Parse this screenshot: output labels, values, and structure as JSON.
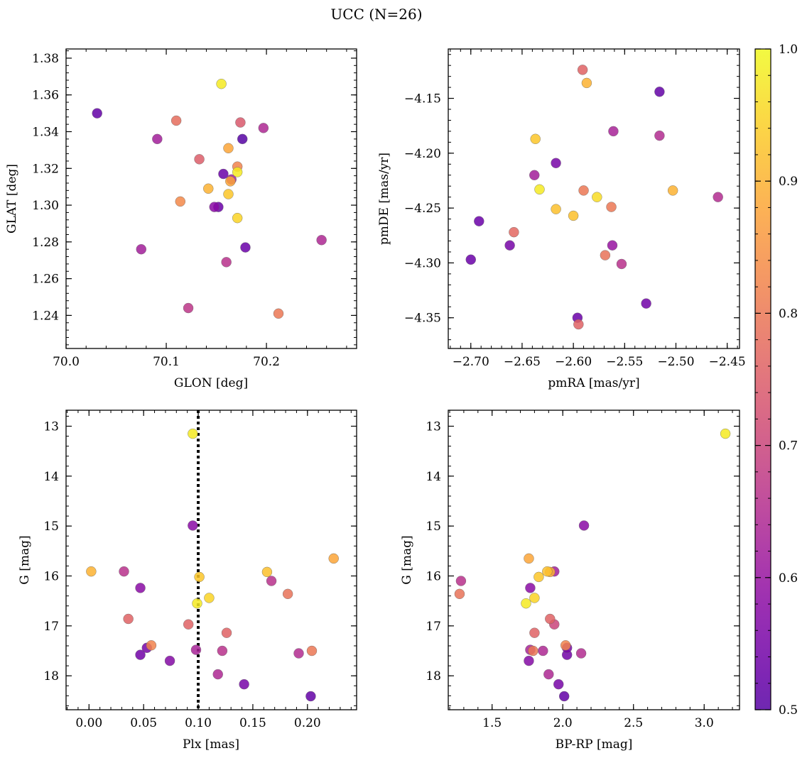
{
  "figure": {
    "title": "UCC (N=26)"
  },
  "colorbar": {
    "range": [
      0.5,
      1.0
    ],
    "ticks": [
      "0.5",
      "0.6",
      "0.7",
      "0.8",
      "0.9",
      "1.0"
    ],
    "tick_values": [
      0.5,
      0.6,
      0.7,
      0.8,
      0.9,
      1.0
    ],
    "colormap": "plasma"
  },
  "chart_data": [
    {
      "type": "scatter",
      "xlabel": "GLON [deg]",
      "ylabel": "GLAT [deg]",
      "xlim": [
        70.0,
        70.29
      ],
      "ylim": [
        1.222,
        1.385
      ],
      "xticks": [
        70.0,
        70.1,
        70.2
      ],
      "xtick_labels": [
        "70.0",
        "70.1",
        "70.2"
      ],
      "yticks": [
        1.24,
        1.26,
        1.28,
        1.3,
        1.32,
        1.34,
        1.36,
        1.38
      ],
      "ytick_labels": [
        "1.24",
        "1.26",
        "1.28",
        "1.30",
        "1.32",
        "1.34",
        "1.36",
        "1.38"
      ],
      "points": [
        {
          "x": 70.031,
          "y": 1.35,
          "c": 0.52
        },
        {
          "x": 70.091,
          "y": 1.336,
          "c": 0.62
        },
        {
          "x": 70.11,
          "y": 1.346,
          "c": 0.78
        },
        {
          "x": 70.133,
          "y": 1.325,
          "c": 0.75
        },
        {
          "x": 70.155,
          "y": 1.366,
          "c": 0.98
        },
        {
          "x": 70.174,
          "y": 1.345,
          "c": 0.74
        },
        {
          "x": 70.176,
          "y": 1.336,
          "c": 0.5
        },
        {
          "x": 70.197,
          "y": 1.342,
          "c": 0.64
        },
        {
          "x": 70.162,
          "y": 1.331,
          "c": 0.88
        },
        {
          "x": 70.171,
          "y": 1.321,
          "c": 0.82
        },
        {
          "x": 70.157,
          "y": 1.317,
          "c": 0.53
        },
        {
          "x": 70.171,
          "y": 1.318,
          "c": 0.98
        },
        {
          "x": 70.165,
          "y": 1.314,
          "c": 0.62
        },
        {
          "x": 70.164,
          "y": 1.313,
          "c": 0.88
        },
        {
          "x": 70.142,
          "y": 1.309,
          "c": 0.9
        },
        {
          "x": 70.162,
          "y": 1.306,
          "c": 0.93
        },
        {
          "x": 70.114,
          "y": 1.302,
          "c": 0.83
        },
        {
          "x": 70.148,
          "y": 1.299,
          "c": 0.58
        },
        {
          "x": 70.152,
          "y": 1.299,
          "c": 0.53
        },
        {
          "x": 70.171,
          "y": 1.293,
          "c": 0.95
        },
        {
          "x": 70.075,
          "y": 1.276,
          "c": 0.62
        },
        {
          "x": 70.179,
          "y": 1.277,
          "c": 0.53
        },
        {
          "x": 70.255,
          "y": 1.281,
          "c": 0.64
        },
        {
          "x": 70.16,
          "y": 1.269,
          "c": 0.66
        },
        {
          "x": 70.122,
          "y": 1.244,
          "c": 0.67
        },
        {
          "x": 70.212,
          "y": 1.241,
          "c": 0.8
        }
      ]
    },
    {
      "type": "scatter",
      "xlabel": "pmRA [mas/yr]",
      "ylabel": "pmDE [mas/yr]",
      "xlim": [
        -2.722,
        -2.438
      ],
      "ylim": [
        -4.378,
        -4.105
      ],
      "xticks": [
        -2.7,
        -2.65,
        -2.6,
        -2.55,
        -2.5,
        -2.45
      ],
      "xtick_labels": [
        "−2.70",
        "−2.65",
        "−2.60",
        "−2.55",
        "−2.50",
        "−2.45"
      ],
      "yticks": [
        -4.35,
        -4.3,
        -4.25,
        -4.2,
        -4.15
      ],
      "ytick_labels": [
        "−4.35",
        "−4.30",
        "−4.25",
        "−4.20",
        "−4.15"
      ],
      "points": [
        {
          "x": -2.591,
          "y": -4.124,
          "c": 0.76
        },
        {
          "x": -2.587,
          "y": -4.136,
          "c": 0.9
        },
        {
          "x": -2.516,
          "y": -4.144,
          "c": 0.52
        },
        {
          "x": -2.561,
          "y": -4.18,
          "c": 0.63
        },
        {
          "x": -2.516,
          "y": -4.184,
          "c": 0.65
        },
        {
          "x": -2.637,
          "y": -4.187,
          "c": 0.93
        },
        {
          "x": -2.617,
          "y": -4.209,
          "c": 0.55
        },
        {
          "x": -2.638,
          "y": -4.22,
          "c": 0.62
        },
        {
          "x": -2.633,
          "y": -4.233,
          "c": 0.98
        },
        {
          "x": -2.59,
          "y": -4.234,
          "c": 0.8
        },
        {
          "x": -2.577,
          "y": -4.24,
          "c": 0.96
        },
        {
          "x": -2.503,
          "y": -4.234,
          "c": 0.9
        },
        {
          "x": -2.459,
          "y": -4.24,
          "c": 0.65
        },
        {
          "x": -2.617,
          "y": -4.251,
          "c": 0.92
        },
        {
          "x": -2.6,
          "y": -4.257,
          "c": 0.92
        },
        {
          "x": -2.563,
          "y": -4.249,
          "c": 0.8
        },
        {
          "x": -2.692,
          "y": -4.262,
          "c": 0.53
        },
        {
          "x": -2.658,
          "y": -4.272,
          "c": 0.77
        },
        {
          "x": -2.662,
          "y": -4.284,
          "c": 0.55
        },
        {
          "x": -2.562,
          "y": -4.284,
          "c": 0.6
        },
        {
          "x": -2.569,
          "y": -4.293,
          "c": 0.79
        },
        {
          "x": -2.553,
          "y": -4.301,
          "c": 0.66
        },
        {
          "x": -2.7,
          "y": -4.297,
          "c": 0.53
        },
        {
          "x": -2.529,
          "y": -4.337,
          "c": 0.54
        },
        {
          "x": -2.596,
          "y": -4.35,
          "c": 0.53
        },
        {
          "x": -2.595,
          "y": -4.356,
          "c": 0.76
        }
      ]
    },
    {
      "type": "scatter",
      "xlabel": "Plx [mas]",
      "ylabel": "G [mag]",
      "xlim": [
        -0.021,
        0.245
      ],
      "ylim": [
        18.68,
        12.68
      ],
      "y_inverted": true,
      "xticks": [
        0.0,
        0.05,
        0.1,
        0.15,
        0.2
      ],
      "xtick_labels": [
        "0.00",
        "0.05",
        "0.10",
        "0.15",
        "0.20"
      ],
      "yticks": [
        13,
        14,
        15,
        16,
        17,
        18
      ],
      "ytick_labels": [
        "13",
        "14",
        "15",
        "16",
        "17",
        "18"
      ],
      "vline": {
        "x": 0.1,
        "style": "dotted"
      },
      "points": [
        {
          "x": 0.095,
          "y": 13.15,
          "c": 0.98
        },
        {
          "x": 0.095,
          "y": 14.99,
          "c": 0.58
        },
        {
          "x": 0.002,
          "y": 15.91,
          "c": 0.9
        },
        {
          "x": 0.032,
          "y": 15.91,
          "c": 0.66
        },
        {
          "x": 0.047,
          "y": 16.24,
          "c": 0.58
        },
        {
          "x": 0.224,
          "y": 15.65,
          "c": 0.88
        },
        {
          "x": 0.163,
          "y": 15.92,
          "c": 0.92
        },
        {
          "x": 0.167,
          "y": 16.1,
          "c": 0.66
        },
        {
          "x": 0.182,
          "y": 16.36,
          "c": 0.79
        },
        {
          "x": 0.101,
          "y": 16.02,
          "c": 0.93
        },
        {
          "x": 0.11,
          "y": 16.44,
          "c": 0.95
        },
        {
          "x": 0.099,
          "y": 16.55,
          "c": 0.98
        },
        {
          "x": 0.036,
          "y": 16.86,
          "c": 0.76
        },
        {
          "x": 0.091,
          "y": 16.97,
          "c": 0.76
        },
        {
          "x": 0.126,
          "y": 17.14,
          "c": 0.76
        },
        {
          "x": 0.057,
          "y": 17.39,
          "c": 0.82
        },
        {
          "x": 0.053,
          "y": 17.44,
          "c": 0.55
        },
        {
          "x": 0.098,
          "y": 17.48,
          "c": 0.63
        },
        {
          "x": 0.122,
          "y": 17.5,
          "c": 0.66
        },
        {
          "x": 0.204,
          "y": 17.5,
          "c": 0.8
        },
        {
          "x": 0.192,
          "y": 17.55,
          "c": 0.65
        },
        {
          "x": 0.047,
          "y": 17.58,
          "c": 0.54
        },
        {
          "x": 0.074,
          "y": 17.7,
          "c": 0.57
        },
        {
          "x": 0.118,
          "y": 17.97,
          "c": 0.64
        },
        {
          "x": 0.142,
          "y": 18.17,
          "c": 0.55
        },
        {
          "x": 0.203,
          "y": 18.41,
          "c": 0.52
        }
      ]
    },
    {
      "type": "scatter",
      "xlabel": "BP-RP [mag]",
      "ylabel": "G [mag]",
      "xlim": [
        1.19,
        3.25
      ],
      "ylim": [
        18.68,
        12.68
      ],
      "y_inverted": true,
      "xticks": [
        1.5,
        2.0,
        2.5,
        3.0
      ],
      "xtick_labels": [
        "1.5",
        "2.0",
        "2.5",
        "3.0"
      ],
      "yticks": [
        13,
        14,
        15,
        16,
        17,
        18
      ],
      "ytick_labels": [
        "13",
        "14",
        "15",
        "16",
        "17",
        "18"
      ],
      "points": [
        {
          "x": 3.15,
          "y": 13.15,
          "c": 0.98
        },
        {
          "x": 2.15,
          "y": 14.99,
          "c": 0.58
        },
        {
          "x": 1.76,
          "y": 15.65,
          "c": 0.88
        },
        {
          "x": 1.89,
          "y": 15.91,
          "c": 0.92
        },
        {
          "x": 1.94,
          "y": 15.91,
          "c": 0.62
        },
        {
          "x": 1.91,
          "y": 15.92,
          "c": 0.9
        },
        {
          "x": 1.83,
          "y": 16.02,
          "c": 0.93
        },
        {
          "x": 1.28,
          "y": 16.1,
          "c": 0.66
        },
        {
          "x": 1.77,
          "y": 16.24,
          "c": 0.58
        },
        {
          "x": 1.27,
          "y": 16.36,
          "c": 0.79
        },
        {
          "x": 1.8,
          "y": 16.44,
          "c": 0.95
        },
        {
          "x": 1.74,
          "y": 16.55,
          "c": 0.98
        },
        {
          "x": 1.91,
          "y": 16.86,
          "c": 0.76
        },
        {
          "x": 1.94,
          "y": 16.97,
          "c": 0.7
        },
        {
          "x": 1.8,
          "y": 17.14,
          "c": 0.76
        },
        {
          "x": 2.02,
          "y": 17.39,
          "c": 0.82
        },
        {
          "x": 2.03,
          "y": 17.44,
          "c": 0.55
        },
        {
          "x": 1.77,
          "y": 17.48,
          "c": 0.63
        },
        {
          "x": 1.79,
          "y": 17.5,
          "c": 0.8
        },
        {
          "x": 1.86,
          "y": 17.5,
          "c": 0.64
        },
        {
          "x": 2.13,
          "y": 17.55,
          "c": 0.65
        },
        {
          "x": 2.03,
          "y": 17.58,
          "c": 0.54
        },
        {
          "x": 1.76,
          "y": 17.7,
          "c": 0.57
        },
        {
          "x": 1.9,
          "y": 17.97,
          "c": 0.64
        },
        {
          "x": 1.97,
          "y": 18.17,
          "c": 0.55
        },
        {
          "x": 2.01,
          "y": 18.41,
          "c": 0.52
        }
      ]
    }
  ]
}
